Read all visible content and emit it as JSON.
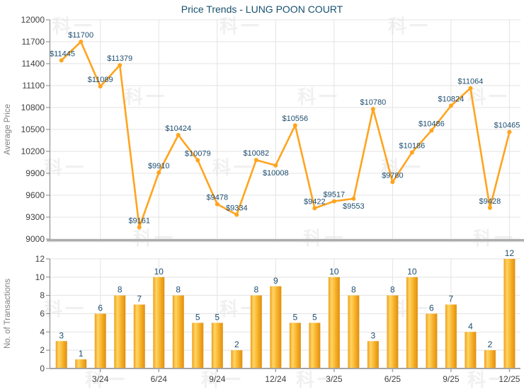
{
  "title": "Price Trends - LUNG POON COURT",
  "watermark_text": "科一",
  "colors": {
    "line": "#FFA41E",
    "marker": "#FFA41E",
    "bar_edge_dark": "#E18E0D",
    "bar_edge_left": "#EDA01B",
    "bar_highlight": "#FFD566",
    "bar_mid": "#F9B62F",
    "data_label": "#1D4D70",
    "title": "#17506E",
    "axis_title": "#808080",
    "tick_label": "#404040",
    "grid": "#E3E3E3",
    "axis": "#808080",
    "baseline_band": "#ADADAD",
    "baseline_band_shadow": "#D8D8D8",
    "bottom_axis": "#A4A4A4"
  },
  "chart_data": [
    {
      "type": "line",
      "title": "Price Trends - LUNG POON COURT",
      "ylabel": "Average Price",
      "ylim": [
        9000,
        12000
      ],
      "ytick_step": 300,
      "grid": true,
      "legend": "none",
      "values": [
        11445,
        11700,
        11089,
        11379,
        9161,
        9910,
        10424,
        10079,
        9478,
        9334,
        10082,
        10008,
        10556,
        9422,
        9517,
        9553,
        10780,
        9780,
        10186,
        10486,
        10824,
        11064,
        9428,
        10465
      ],
      "point_labels": [
        "$11445",
        "$11700",
        "$11089",
        "$11379",
        "$9161",
        "$9910",
        "$10424",
        "$10079",
        "$9478",
        "$9334",
        "$10082",
        "$10008",
        "$10556",
        "$9422",
        "$9517",
        "$9553",
        "$10780",
        "$9780",
        "$10186",
        "$10486",
        "$10824",
        "$11064",
        "$9428",
        "$10465"
      ],
      "label_below_indices": [
        11,
        15
      ]
    },
    {
      "type": "bar",
      "ylabel": "No. of Transactions",
      "ylim": [
        0,
        12
      ],
      "ytick_step": 2,
      "grid": true,
      "legend": "none",
      "values": [
        3,
        1,
        6,
        8,
        7,
        10,
        8,
        5,
        5,
        2,
        8,
        9,
        5,
        5,
        10,
        8,
        3,
        8,
        10,
        6,
        7,
        4,
        2,
        12
      ],
      "xtick_labels": [
        "3/24",
        "6/24",
        "9/24",
        "12/24",
        "3/25",
        "6/25",
        "9/25",
        "12/25"
      ],
      "xtick_indices": [
        2,
        5,
        8,
        11,
        14,
        17,
        20,
        23
      ]
    }
  ]
}
